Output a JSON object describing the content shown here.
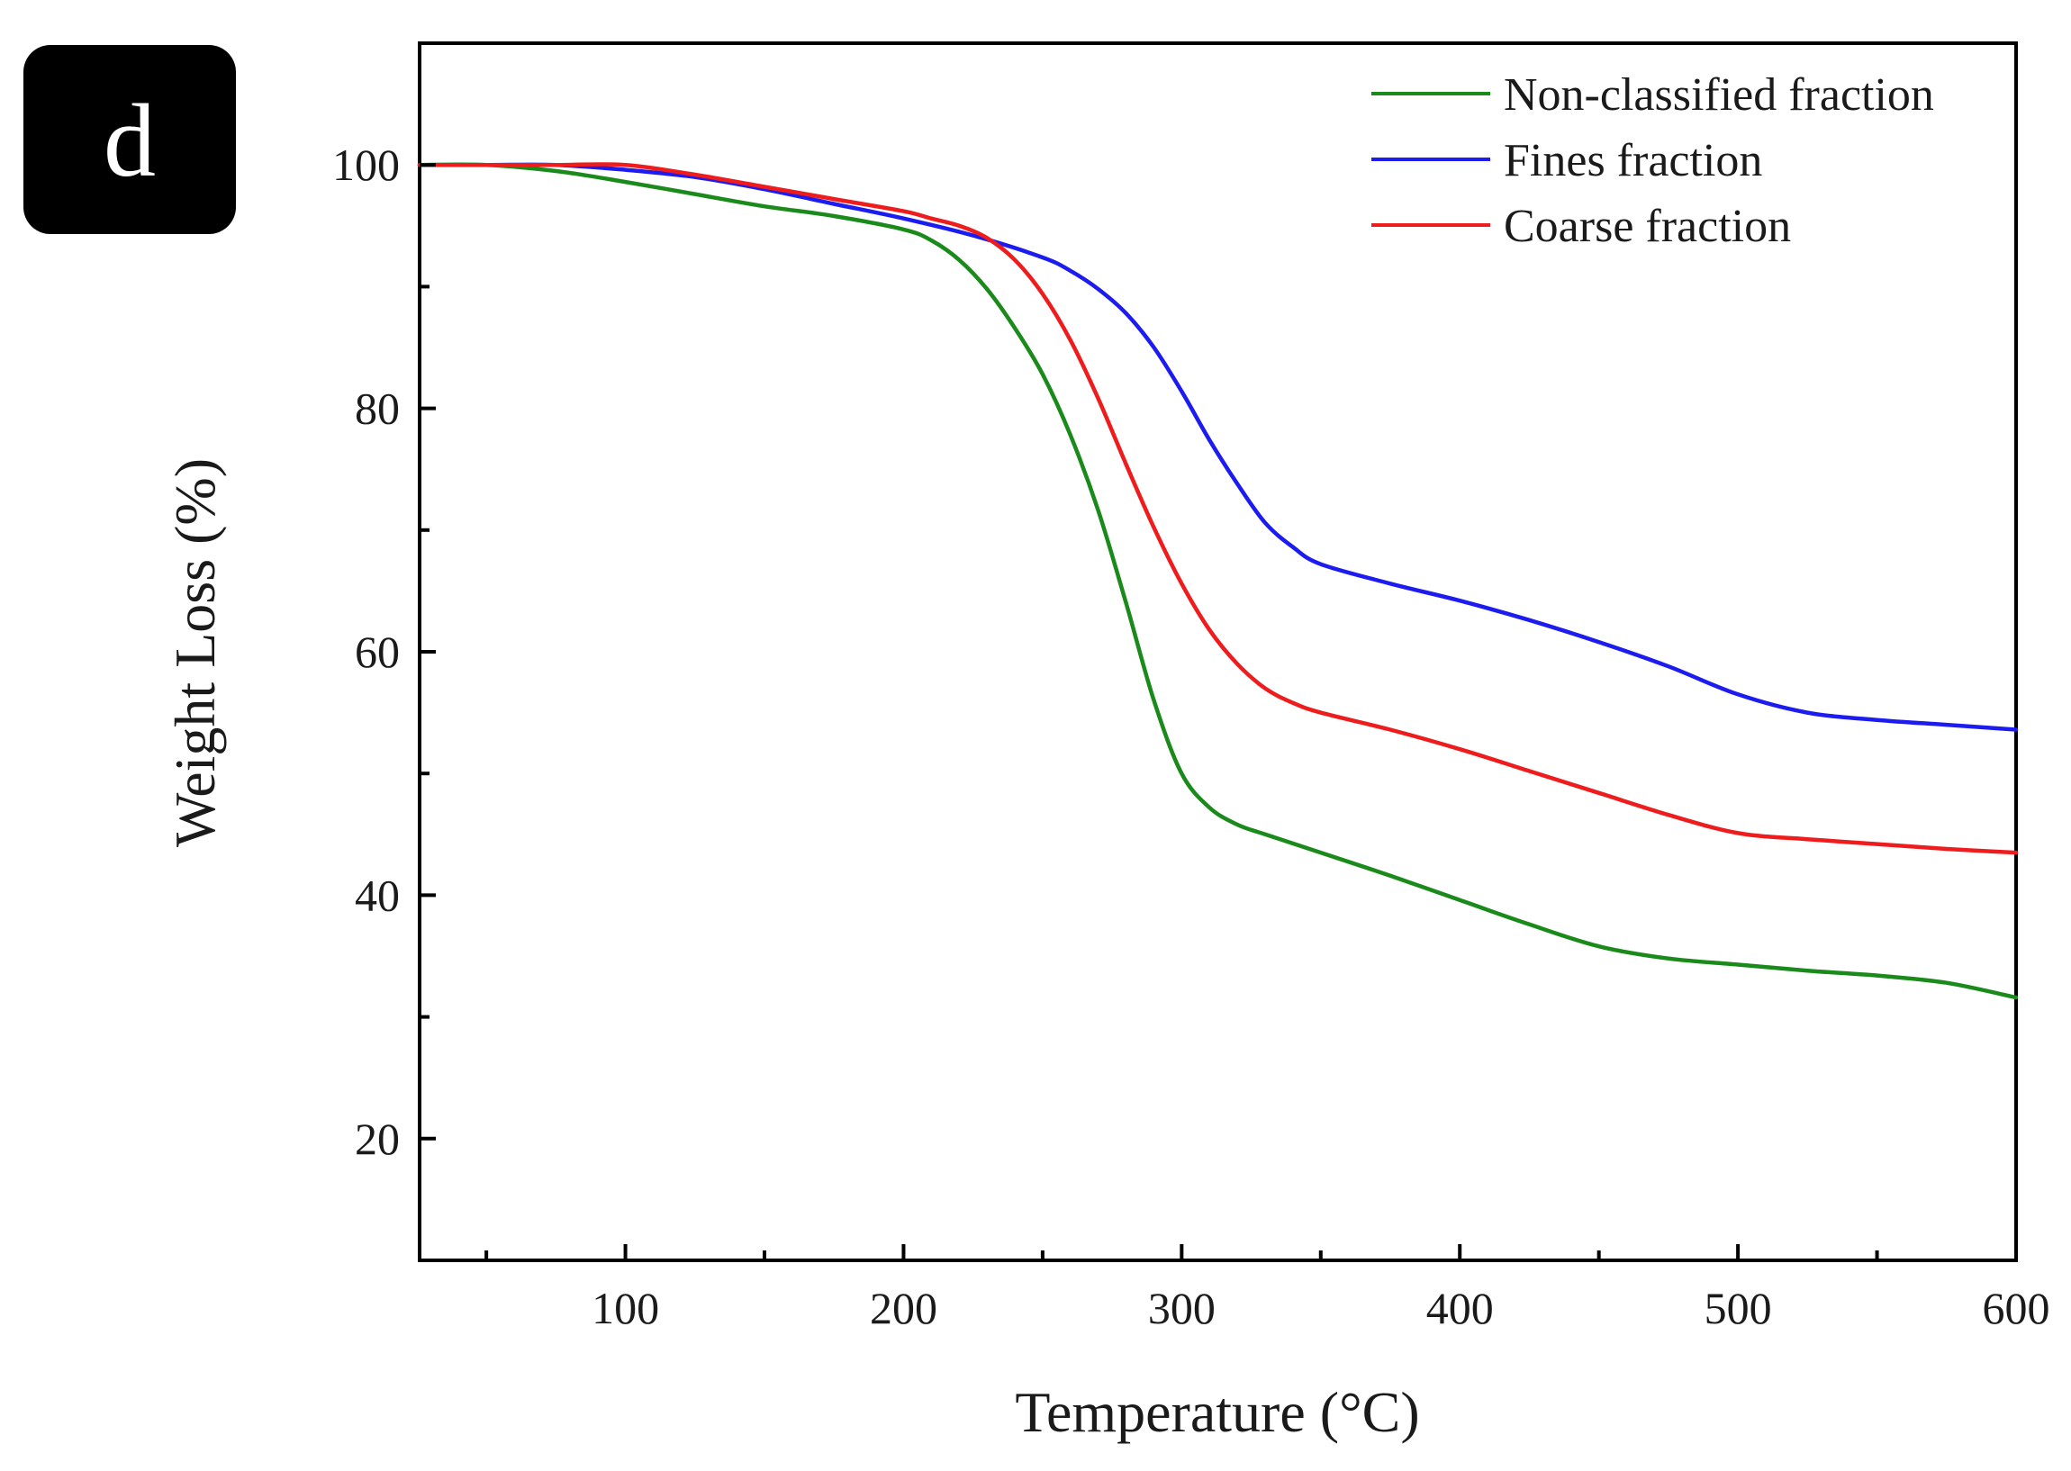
{
  "panel_label": "d",
  "chart_data": {
    "type": "line",
    "xlabel": "Temperature (°C)",
    "ylabel": "Weight Loss (%)",
    "xlim": [
      26,
      600
    ],
    "ylim": [
      10,
      110
    ],
    "xticks": [
      100,
      200,
      300,
      400,
      500,
      600
    ],
    "yticks": [
      20,
      40,
      60,
      80,
      100
    ],
    "grid": false,
    "legend_position": "top-right",
    "series": [
      {
        "name": "Non-classified fraction",
        "color": "#1a8a1a",
        "x": [
          26,
          50,
          75,
          100,
          125,
          150,
          175,
          200,
          210,
          220,
          230,
          240,
          250,
          260,
          270,
          280,
          290,
          300,
          310,
          320,
          330,
          350,
          375,
          400,
          425,
          450,
          475,
          500,
          525,
          550,
          575,
          600
        ],
        "y": [
          100,
          100,
          99.5,
          98.6,
          97.6,
          96.6,
          95.8,
          94.7,
          93.8,
          92.2,
          89.8,
          86.6,
          82.8,
          77.8,
          71.6,
          64.0,
          56.0,
          50.0,
          47.2,
          45.8,
          45.0,
          43.5,
          41.6,
          39.6,
          37.6,
          35.8,
          34.8,
          34.3,
          33.8,
          33.4,
          32.8,
          31.6
        ]
      },
      {
        "name": "Fines fraction",
        "color": "#1c1cf0",
        "x": [
          26,
          50,
          75,
          100,
          125,
          150,
          175,
          200,
          225,
          250,
          260,
          270,
          280,
          290,
          300,
          310,
          320,
          330,
          340,
          350,
          375,
          400,
          425,
          450,
          475,
          500,
          525,
          550,
          575,
          600
        ],
        "y": [
          100,
          100,
          100,
          99.6,
          99.0,
          98.0,
          96.8,
          95.6,
          94.2,
          92.4,
          91.3,
          89.8,
          87.8,
          85.0,
          81.4,
          77.4,
          73.8,
          70.6,
          68.6,
          67.2,
          65.6,
          64.2,
          62.6,
          60.8,
          58.8,
          56.5,
          55.0,
          54.4,
          54.0,
          53.6
        ]
      },
      {
        "name": "Coarse fraction",
        "color": "#ee1c1c",
        "x": [
          26,
          50,
          75,
          100,
          125,
          150,
          175,
          200,
          210,
          220,
          230,
          240,
          250,
          260,
          270,
          280,
          290,
          300,
          310,
          320,
          330,
          340,
          350,
          375,
          400,
          425,
          450,
          475,
          500,
          525,
          550,
          575,
          600
        ],
        "y": [
          100,
          100,
          100,
          100,
          99.2,
          98.2,
          97.2,
          96.2,
          95.6,
          95.0,
          94.0,
          92.2,
          89.4,
          85.6,
          80.8,
          75.4,
          70.2,
          65.6,
          61.8,
          59.0,
          57.0,
          55.8,
          55.0,
          53.6,
          52.0,
          50.2,
          48.4,
          46.6,
          45.1,
          44.6,
          44.2,
          43.8,
          43.5
        ]
      }
    ]
  }
}
